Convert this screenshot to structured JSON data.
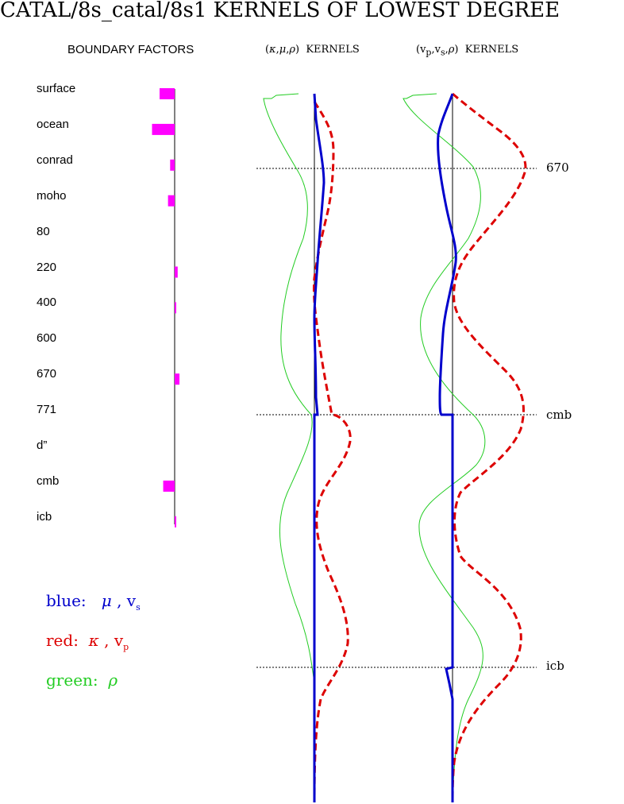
{
  "title": "CATAL/8s_catal/8s1 KERNELS OF LOWEST DEGREE",
  "headers": {
    "boundary": "BOUNDARY FACTORS",
    "kmr": "(κ,μ,ρ) KERNELS",
    "vvr": "(v_p,v_s,ρ) KERNELS"
  },
  "boundaries": [
    {
      "name": "surface",
      "factor": -0.5
    },
    {
      "name": "ocean",
      "factor": -0.75
    },
    {
      "name": "conrad",
      "factor": -0.15
    },
    {
      "name": "moho",
      "factor": -0.22
    },
    {
      "name": "80",
      "factor": 0.0
    },
    {
      "name": "220",
      "factor": 0.1
    },
    {
      "name": "400",
      "factor": 0.03
    },
    {
      "name": "600",
      "factor": 0.0
    },
    {
      "name": "670",
      "factor": 0.16
    },
    {
      "name": "771",
      "factor": 0.0
    },
    {
      "name": "d”",
      "factor": 0.0
    },
    {
      "name": "cmb",
      "factor": -0.38
    },
    {
      "name": "icb",
      "factor": 0.05
    }
  ],
  "depth_lines": [
    "670",
    "cmb",
    "icb"
  ],
  "legend": {
    "blue": {
      "label": "blue:",
      "symbols": "μ , v",
      "sub": "s",
      "color": "#0000cc"
    },
    "red": {
      "label": "red:",
      "symbols": "κ , v",
      "sub": "p",
      "color": "#dd0000"
    },
    "green": {
      "label": "green:",
      "symbols": "ρ",
      "color": "#22cc22"
    }
  },
  "chart_data": [
    {
      "type": "line",
      "title": "(κ,μ,ρ) KERNELS",
      "series": [
        {
          "name": "blue",
          "x": [
            0,
            0.04,
            0.08,
            0.1,
            0.12,
            0.14,
            0.08,
            0,
            -0.02,
            0,
            0.02,
            0.04,
            0,
            0,
            0,
            0,
            0,
            0,
            0,
            0,
            0,
            0,
            0,
            0,
            0,
            0
          ],
          "y": [
            0,
            0.02,
            0.06,
            0.1,
            0.15,
            0.2,
            0.25,
            0.3,
            0.35,
            0.4,
            0.45,
            0.5,
            0.55,
            0.6,
            0.65,
            0.7,
            0.75,
            0.8,
            0.85,
            0.9,
            0.95,
            1.0,
            1.05,
            1.1,
            1.15,
            1.2
          ]
        },
        {
          "name": "red",
          "x": [
            0.1,
            0.2,
            0.25,
            0.2,
            0.1,
            0.03,
            0.1,
            0.25,
            0.35,
            0.15,
            0.05,
            0.25,
            0.4,
            0.15,
            0.05,
            0.3,
            0.4,
            0.3,
            0.1,
            0.05,
            0.03
          ],
          "y": [
            0,
            0.05,
            0.1,
            0.2,
            0.3,
            0.35,
            0.4,
            0.5,
            0.6,
            0.7,
            0.75,
            0.8,
            0.9,
            0.95,
            1.0,
            1.05,
            1.1,
            1.15,
            1.2,
            1.25,
            1.3
          ]
        },
        {
          "name": "green",
          "x": [
            -0.6,
            -0.55,
            -0.4,
            -0.2,
            -0.3,
            -0.5,
            -0.4,
            0,
            -0.2,
            -0.6,
            -0.5,
            -0.1,
            0,
            0
          ],
          "y": [
            0,
            0.05,
            0.1,
            0.2,
            0.3,
            0.4,
            0.5,
            0.6,
            0.7,
            0.8,
            0.9,
            1.0,
            1.1,
            1.3
          ]
        }
      ]
    },
    {
      "type": "line",
      "title": "(v_p,v_s,ρ) KERNELS",
      "series": [
        {
          "name": "blue",
          "x": [
            0,
            -0.2,
            -0.1,
            0,
            0.05,
            0,
            -0.1,
            -0.15,
            -0.1,
            0,
            0,
            0,
            0,
            -0.05,
            0,
            0
          ],
          "y": [
            0,
            0.05,
            0.1,
            0.2,
            0.3,
            0.35,
            0.4,
            0.5,
            0.6,
            0.7,
            0.8,
            0.9,
            1.0,
            1.05,
            1.1,
            1.3
          ]
        },
        {
          "name": "red",
          "x": [
            0,
            0.3,
            0.6,
            0.5,
            0.1,
            0,
            0.2,
            0.6,
            0.5,
            0.2,
            0,
            0.3,
            0.6,
            0.4,
            0.1,
            0
          ],
          "y": [
            0,
            0.05,
            0.1,
            0.2,
            0.3,
            0.35,
            0.45,
            0.6,
            0.65,
            0.75,
            0.85,
            0.95,
            1.05,
            1.15,
            1.25,
            1.35
          ]
        },
        {
          "name": "green",
          "x": [
            -0.6,
            -0.4,
            -0.1,
            0.3,
            0.1,
            -0.4,
            -0.1,
            0.3,
            -0.2,
            -0.5,
            -0.3,
            0.2,
            0,
            0
          ],
          "y": [
            0,
            0.05,
            0.1,
            0.2,
            0.3,
            0.4,
            0.5,
            0.6,
            0.7,
            0.8,
            0.9,
            1.0,
            1.1,
            1.3
          ]
        }
      ]
    }
  ]
}
